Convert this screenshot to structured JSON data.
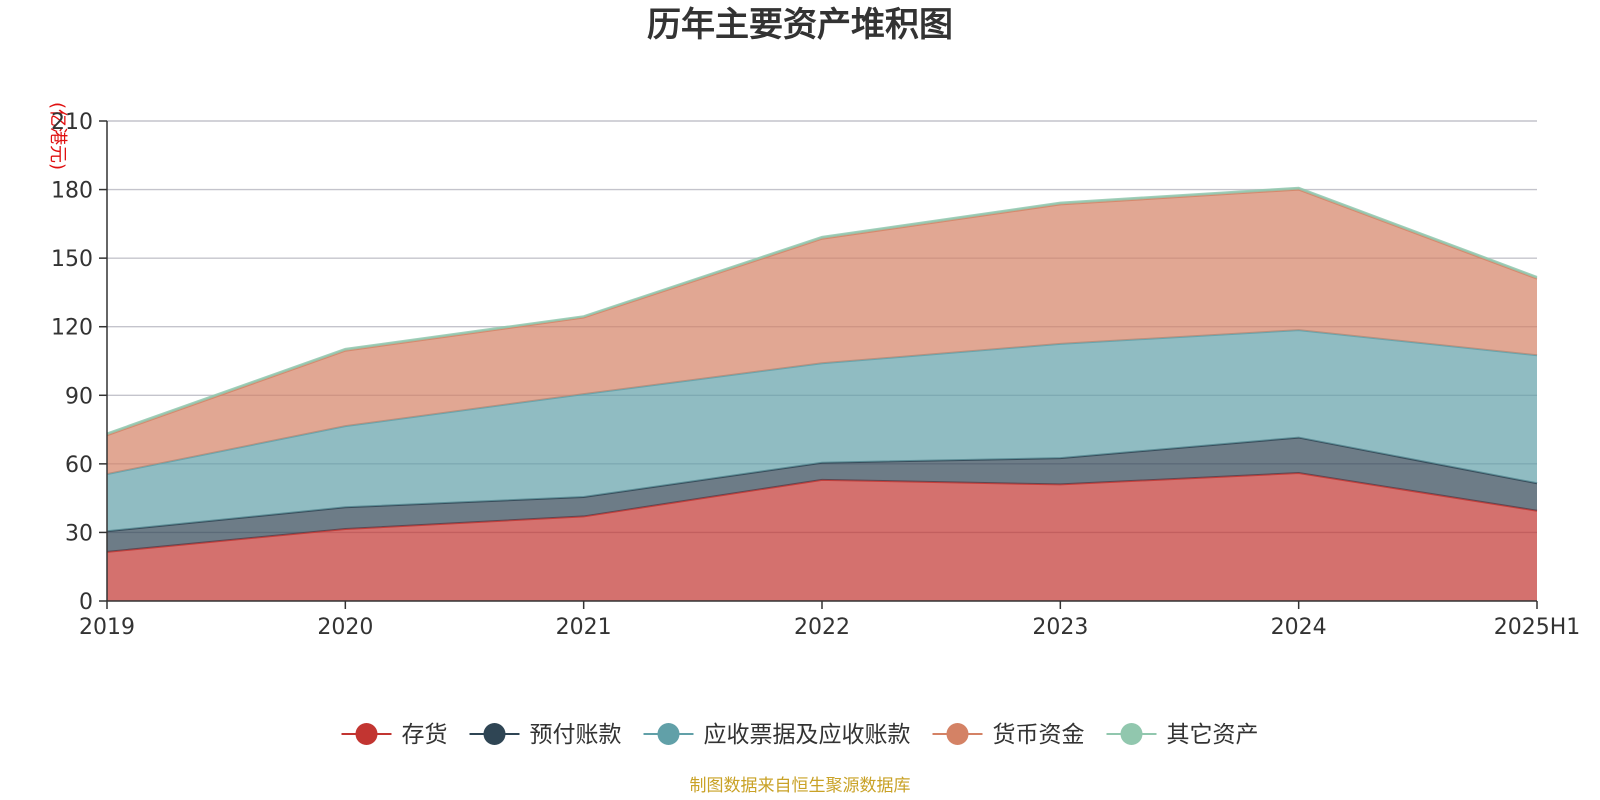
{
  "chart_data": {
    "type": "area",
    "stacked": true,
    "title": "历年主要资产堆积图",
    "unit_label": "(亿港元)",
    "categories": [
      "2019",
      "2020",
      "2021",
      "2022",
      "2023",
      "2024",
      "2025H1"
    ],
    "ylim": [
      0,
      210
    ],
    "yticks": [
      0,
      30,
      60,
      90,
      120,
      150,
      180,
      210
    ],
    "grid": true,
    "legend_position": "bottom",
    "series": [
      {
        "name": "存货",
        "color": "#c23531",
        "values": [
          21.5,
          31.5,
          37,
          53,
          51,
          56,
          39.5
        ]
      },
      {
        "name": "预付账款",
        "color": "#2f4554",
        "values": [
          9,
          9.5,
          8.5,
          7.5,
          11.5,
          15.5,
          12
        ]
      },
      {
        "name": "应收票据及应收账款",
        "color": "#61a0a8",
        "values": [
          25,
          35.5,
          45,
          43.5,
          50,
          47,
          56
        ]
      },
      {
        "name": "货币资金",
        "color": "#d48265",
        "values": [
          17,
          33,
          33.5,
          54.5,
          61,
          61.5,
          33.5
        ]
      },
      {
        "name": "其它资产",
        "color": "#91c7ae",
        "values": [
          0.8,
          0.8,
          0.6,
          0.8,
          0.8,
          0.8,
          0.8
        ]
      }
    ]
  },
  "source_note": "制图数据来自恒生聚源数据库"
}
